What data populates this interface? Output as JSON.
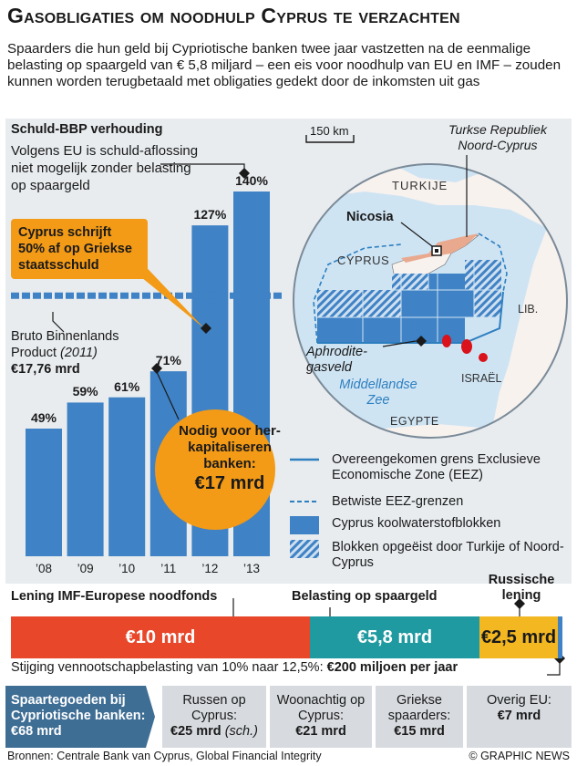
{
  "title": "Gasobligaties om noodhulp Cyprus te verzachten",
  "subtitle": "Spaarders die hun geld bij Cypriotische banken twee jaar vastzetten na de eenmalige belasting op spaargeld van € 5,8 miljard – een eis voor noodhulp van EU en IMF – zouden kunnen worden terugbetaald met obligaties gedekt door de inkomsten uit gas",
  "chart_data": {
    "type": "bar",
    "title": "Schuld-BBP verhouding",
    "categories": [
      "’08",
      "’09",
      "’10",
      "’11",
      "’12",
      "’13"
    ],
    "values": [
      49,
      59,
      61,
      71,
      127,
      140
    ],
    "value_labels": [
      "49%",
      "59%",
      "61%",
      "71%",
      "127%",
      "140%"
    ],
    "ylim": [
      0,
      150
    ],
    "bar_color": "#3f82c6",
    "reference_line": {
      "value": 100,
      "style": "dashed"
    }
  },
  "annotations": {
    "eu_note": "Volgens EU is schuld-aflossing niet mogelijk zonder belasting op spaargeld",
    "greek_callout": "Cyprus schrijft 50% af op Griekse staatsschuld",
    "gdp_label_line1": "Bruto Binnenlands",
    "gdp_label_line2": "Product",
    "gdp_year": "(2011)",
    "gdp_value": "€17,76 mrd",
    "recap_text": "Nodig voor her-kapitaliseren banken:",
    "recap_value": "€17 mrd"
  },
  "map": {
    "scale": "150 km",
    "turkish_republic": "Turkse Republiek Noord-Cyprus",
    "turkije": "TURKIJE",
    "nicosia": "Nicosia",
    "cyprus": "CYPRUS",
    "lib": "LIB.",
    "israel": "ISRAËL",
    "egypte": "EGYPTE",
    "aphrodite": "Aphrodite-gasveld",
    "sea": "Middellandse Zee"
  },
  "legend": [
    {
      "label": "Overeengekomen grens Exclusieve Economische Zone (EEZ)",
      "icon": "solid-line"
    },
    {
      "label": "Betwiste EEZ-grenzen",
      "icon": "dashed-line"
    },
    {
      "label": "Cyprus koolwaterstofblokken",
      "icon": "solid-block"
    },
    {
      "label": "Blokken opgeëist door Turkije of Noord-Cyprus",
      "icon": "hatched-block"
    }
  ],
  "loans": {
    "imf_label": "Lening IMF-Europese noodfonds",
    "tax_label": "Belasting op spaargeld",
    "russian_label": "Russische lening",
    "imf_value": "€10 mrd",
    "tax_value": "€5,8 mrd",
    "russian_value": "€2,5 mrd",
    "vat_text": "Stijging vennootschapbelasting van 10% naar 12,5%:",
    "vat_value": "€200 miljoen per jaar",
    "colors": {
      "imf": "#e8472a",
      "tax": "#1f9aa0",
      "russian": "#f3b722",
      "vat": "#3f82c6"
    }
  },
  "savings": {
    "title": "Spaartegoeden bij Cypriotische banken: €68 mrd",
    "items": [
      {
        "label": "Russen op Cyprus:",
        "value": "€25 mrd",
        "note": "(sch.)"
      },
      {
        "label": "Woonachtig op Cyprus:",
        "value": "€21 mrd",
        "note": ""
      },
      {
        "label": "Griekse spaarders:",
        "value": "€15 mrd",
        "note": ""
      },
      {
        "label": "Overig EU:",
        "value": "€7 mrd",
        "note": ""
      }
    ]
  },
  "footer": {
    "source": "Bronnen: Centrale Bank van Cyprus, Global Financial Integrity",
    "credit": "© GRAPHIC NEWS"
  }
}
